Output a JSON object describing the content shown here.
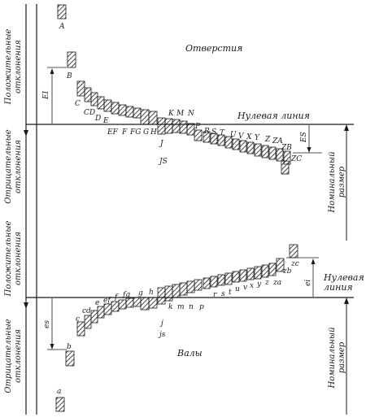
{
  "holes": {
    "title": "Отверстия",
    "zero_line": "Нулевая линия",
    "letters_top": [
      "A",
      "B",
      "C",
      "CD",
      "D",
      "E",
      "EF",
      "F",
      "FG",
      "G",
      "H",
      "K",
      "M",
      "N"
    ],
    "letters_bottom": [
      "J",
      "JS",
      "P",
      "R",
      "S",
      "T",
      "U",
      "V",
      "X",
      "Y",
      "Z",
      "ZA",
      "ZB",
      "ZC"
    ],
    "ei_label": "EI",
    "es_label": "ES",
    "nominal": [
      "Номинальный",
      "размер"
    ]
  },
  "shafts": {
    "title": "Валы",
    "zero_line": [
      "Нулевая",
      "линия"
    ],
    "letters_top": [
      "e",
      "ef",
      "f",
      "fg",
      "g",
      "h",
      "r",
      "s",
      "t",
      "u",
      "v",
      "x",
      "y",
      "z",
      "za",
      "zb",
      "zc"
    ],
    "letters_bottom": [
      "a",
      "b",
      "c",
      "cd",
      "k",
      "m",
      "n",
      "p",
      "j",
      "js"
    ],
    "es_label": "es",
    "ei_label": "ei",
    "nominal": [
      "Номинальный",
      "размер"
    ]
  },
  "side_labels": {
    "positive": [
      "Положительные",
      "отклонения"
    ],
    "negative": [
      "Отрицательные",
      "отклонения"
    ]
  }
}
